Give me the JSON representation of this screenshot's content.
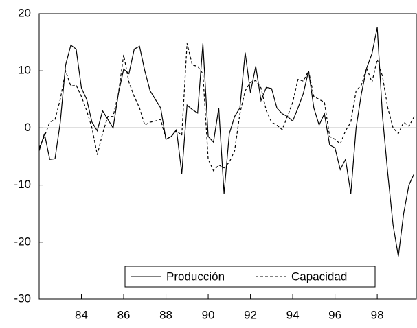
{
  "chart_data": {
    "type": "line",
    "x": [
      82.0,
      82.25,
      82.5,
      82.75,
      83.0,
      83.25,
      83.5,
      83.75,
      84.0,
      84.25,
      84.5,
      84.75,
      85.0,
      85.25,
      85.5,
      85.75,
      86.0,
      86.25,
      86.5,
      86.75,
      87.0,
      87.25,
      87.5,
      87.75,
      88.0,
      88.25,
      88.5,
      88.75,
      89.0,
      89.25,
      89.5,
      89.75,
      90.0,
      90.25,
      90.5,
      90.75,
      91.0,
      91.25,
      91.5,
      91.75,
      92.0,
      92.25,
      92.5,
      92.75,
      93.0,
      93.25,
      93.5,
      93.75,
      94.0,
      94.25,
      94.5,
      94.75,
      95.0,
      95.25,
      95.5,
      95.75,
      96.0,
      96.25,
      96.5,
      96.75,
      97.0,
      97.25,
      97.5,
      97.75,
      98.0,
      98.25,
      98.5,
      98.75,
      99.0,
      99.25,
      99.5,
      99.75
    ],
    "series": [
      {
        "name": "Producción",
        "color": "#000000",
        "style": "solid",
        "values": [
          -4,
          -1,
          -5.5,
          -5.4,
          1,
          11,
          14.5,
          13.8,
          7,
          5,
          1,
          -0.5,
          3,
          1.5,
          0,
          6,
          10.3,
          9.5,
          13.8,
          14.3,
          10,
          6.5,
          5,
          3.5,
          -2,
          -1.5,
          -0.3,
          -8,
          4,
          3.2,
          2.6,
          14.8,
          -1.5,
          -2.5,
          3.5,
          -11.5,
          -1,
          2,
          3.5,
          13.2,
          6.2,
          10.8,
          4.8,
          7.1,
          6.9,
          3.5,
          2.5,
          2,
          1.2,
          3.5,
          6,
          10,
          3.5,
          0.5,
          2.5,
          -3,
          -3.5,
          -7.3,
          -5.5,
          -11.5,
          0,
          6,
          10.5,
          13,
          17.6,
          2,
          -8,
          -17,
          -22.5,
          -15,
          -10,
          -8
        ]
      },
      {
        "name": "Capacidad",
        "color": "#000000",
        "style": "dashed",
        "values": [
          -3.5,
          -1.5,
          1,
          1.5,
          5,
          10,
          7.3,
          7.5,
          5.5,
          3,
          0,
          -4.7,
          -1,
          2,
          2,
          6,
          12.8,
          8,
          5.5,
          3.5,
          0.5,
          1,
          1.2,
          1.5,
          -2,
          -1.5,
          -0.5,
          -1.3,
          14.8,
          11,
          10.8,
          9.5,
          -5.5,
          -7.5,
          -6.5,
          -7,
          -6,
          -4,
          2.5,
          6.5,
          8,
          8.3,
          7,
          3,
          1,
          0.5,
          -0.3,
          2,
          4.5,
          8.5,
          8.2,
          10,
          5.5,
          5,
          4.5,
          -1.5,
          -2,
          -2.8,
          -0.5,
          1,
          6.5,
          7.5,
          10.5,
          8,
          12,
          9,
          3.5,
          0,
          -1,
          1,
          0.3,
          2
        ]
      }
    ],
    "xlim": [
      82,
      99.85
    ],
    "xticks": [
      84,
      86,
      88,
      90,
      92,
      94,
      96,
      98
    ],
    "ylim": [
      -30,
      20
    ],
    "yticks": [
      -30,
      -20,
      -10,
      0,
      10,
      20
    ],
    "zero_line": true,
    "legend": "bottom"
  }
}
